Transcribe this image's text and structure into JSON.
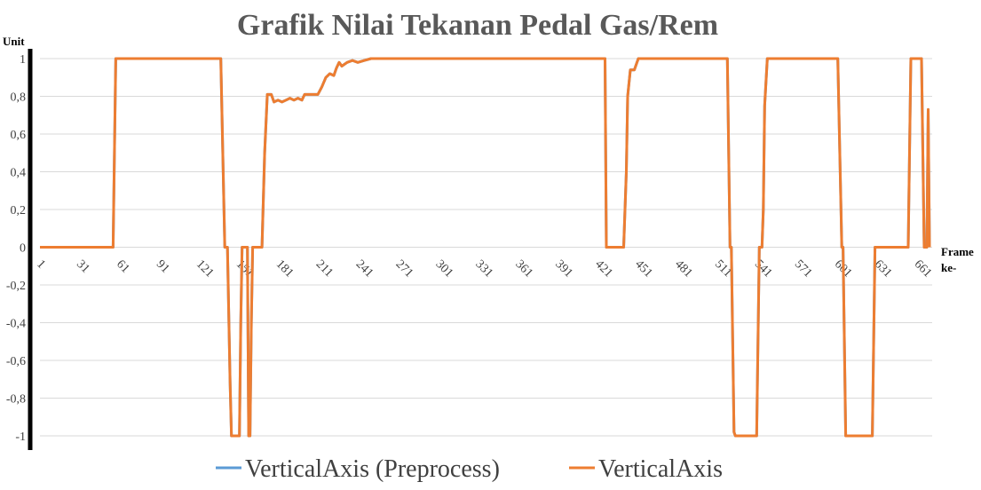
{
  "chart_data": {
    "type": "line",
    "title": "Grafik Nilai Tekanan Pedal Gas/Rem",
    "ylabel": "Unit",
    "xlabel": "Frame ke-",
    "ylim": [
      -1,
      1
    ],
    "yticks": [
      1,
      0.8,
      0.6,
      0.4,
      0.2,
      0,
      -0.2,
      -0.4,
      -0.6,
      -0.8,
      -1
    ],
    "ytick_labels": [
      "1",
      "0,8",
      "0,6",
      "0,4",
      "0,2",
      "0",
      "-0,2",
      "-0,4",
      "-0,6",
      "-0,8",
      "-1"
    ],
    "xlim": [
      1,
      672
    ],
    "xticks": [
      1,
      31,
      61,
      91,
      121,
      151,
      181,
      211,
      241,
      271,
      301,
      331,
      361,
      391,
      421,
      451,
      481,
      511,
      541,
      571,
      601,
      631,
      661
    ],
    "xtick_labels": [
      "1",
      "31",
      "61",
      "91",
      "121",
      "151",
      "181",
      "211",
      "241",
      "271",
      "301",
      "331",
      "361",
      "391",
      "421",
      "451",
      "481",
      "511",
      "541",
      "571",
      "601",
      "631",
      "661"
    ],
    "grid": true,
    "legend_position": "bottom",
    "series": [
      {
        "name": "VerticalAxis (Preprocess)",
        "color": "#5b9bd5",
        "points": [
          [
            1,
            0
          ],
          [
            56,
            0
          ],
          [
            58,
            1
          ],
          [
            137,
            1
          ],
          [
            140,
            0
          ],
          [
            142,
            0
          ],
          [
            144,
            -0.72
          ],
          [
            145,
            -1
          ],
          [
            151,
            -1
          ],
          [
            152,
            -0.4
          ],
          [
            153,
            0
          ],
          [
            157,
            0
          ],
          [
            158,
            -1
          ],
          [
            159,
            -1
          ],
          [
            160,
            -0.4
          ],
          [
            161,
            0
          ],
          [
            168,
            0
          ],
          [
            170,
            0.5
          ],
          [
            172,
            0.81
          ],
          [
            175,
            0.81
          ],
          [
            177,
            0.77
          ],
          [
            180,
            0.78
          ],
          [
            183,
            0.77
          ],
          [
            186,
            0.78
          ],
          [
            189,
            0.79
          ],
          [
            192,
            0.78
          ],
          [
            195,
            0.79
          ],
          [
            198,
            0.78
          ],
          [
            200,
            0.81
          ],
          [
            210,
            0.81
          ],
          [
            213,
            0.85
          ],
          [
            216,
            0.9
          ],
          [
            219,
            0.92
          ],
          [
            222,
            0.91
          ],
          [
            224,
            0.95
          ],
          [
            226,
            0.98
          ],
          [
            228,
            0.96
          ],
          [
            232,
            0.98
          ],
          [
            236,
            0.99
          ],
          [
            240,
            0.98
          ],
          [
            245,
            0.99
          ],
          [
            250,
            1
          ],
          [
            426,
            1
          ],
          [
            427,
            0
          ],
          [
            440,
            0
          ],
          [
            442,
            0.4
          ],
          [
            443,
            0.8
          ],
          [
            445,
            0.94
          ],
          [
            448,
            0.94
          ],
          [
            451,
            1
          ],
          [
            518,
            1
          ],
          [
            520,
            0
          ],
          [
            521,
            0
          ],
          [
            523,
            -0.98
          ],
          [
            524,
            -1
          ],
          [
            540,
            -1
          ],
          [
            542,
            0
          ],
          [
            544,
            0
          ],
          [
            545,
            0.2
          ],
          [
            546,
            0.75
          ],
          [
            548,
            1
          ],
          [
            601,
            1
          ],
          [
            604,
            0
          ],
          [
            605,
            0
          ],
          [
            607,
            -1
          ],
          [
            627,
            -1
          ],
          [
            629,
            0
          ],
          [
            654,
            0
          ],
          [
            656,
            1
          ],
          [
            664,
            1
          ],
          [
            666,
            0
          ],
          [
            668,
            0
          ],
          [
            669,
            0.73
          ],
          [
            670,
            0
          ]
        ]
      },
      {
        "name": "VerticalAxis",
        "color": "#ed7d31",
        "points": [
          [
            1,
            0
          ],
          [
            56,
            0
          ],
          [
            58,
            1
          ],
          [
            137,
            1
          ],
          [
            140,
            0
          ],
          [
            142,
            0
          ],
          [
            144,
            -0.72
          ],
          [
            145,
            -1
          ],
          [
            151,
            -1
          ],
          [
            152,
            -0.4
          ],
          [
            153,
            0
          ],
          [
            157,
            0
          ],
          [
            158,
            -1
          ],
          [
            159,
            -1
          ],
          [
            160,
            -0.4
          ],
          [
            161,
            0
          ],
          [
            168,
            0
          ],
          [
            170,
            0.5
          ],
          [
            172,
            0.81
          ],
          [
            175,
            0.81
          ],
          [
            177,
            0.77
          ],
          [
            180,
            0.78
          ],
          [
            183,
            0.77
          ],
          [
            186,
            0.78
          ],
          [
            189,
            0.79
          ],
          [
            192,
            0.78
          ],
          [
            195,
            0.79
          ],
          [
            198,
            0.78
          ],
          [
            200,
            0.81
          ],
          [
            210,
            0.81
          ],
          [
            213,
            0.85
          ],
          [
            216,
            0.9
          ],
          [
            219,
            0.92
          ],
          [
            222,
            0.91
          ],
          [
            224,
            0.95
          ],
          [
            226,
            0.98
          ],
          [
            228,
            0.96
          ],
          [
            232,
            0.98
          ],
          [
            236,
            0.99
          ],
          [
            240,
            0.98
          ],
          [
            245,
            0.99
          ],
          [
            250,
            1
          ],
          [
            426,
            1
          ],
          [
            427,
            0
          ],
          [
            440,
            0
          ],
          [
            442,
            0.4
          ],
          [
            443,
            0.8
          ],
          [
            445,
            0.94
          ],
          [
            448,
            0.94
          ],
          [
            451,
            1
          ],
          [
            518,
            1
          ],
          [
            520,
            0
          ],
          [
            521,
            0
          ],
          [
            523,
            -0.98
          ],
          [
            524,
            -1
          ],
          [
            540,
            -1
          ],
          [
            542,
            0
          ],
          [
            544,
            0
          ],
          [
            545,
            0.2
          ],
          [
            546,
            0.75
          ],
          [
            548,
            1
          ],
          [
            601,
            1
          ],
          [
            604,
            0
          ],
          [
            605,
            0
          ],
          [
            607,
            -1
          ],
          [
            627,
            -1
          ],
          [
            629,
            0
          ],
          [
            654,
            0
          ],
          [
            656,
            1
          ],
          [
            664,
            1
          ],
          [
            666,
            0
          ],
          [
            668,
            0
          ],
          [
            669,
            0.73
          ],
          [
            670,
            0
          ]
        ]
      }
    ]
  }
}
